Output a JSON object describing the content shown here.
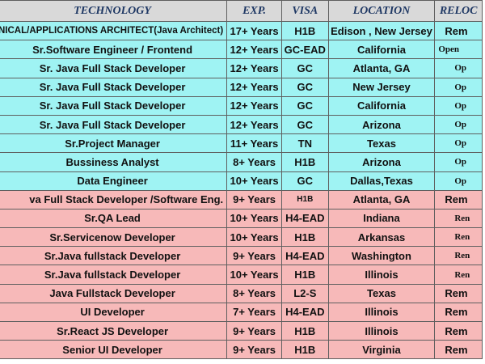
{
  "header": {
    "technology": "TECHNOLOGY",
    "experience": "EXP.",
    "visa": "VISA",
    "location": "LOCATION",
    "relocation": "RELOC"
  },
  "colors": {
    "header_bg": "#d9d9d9",
    "group_a_bg": "#9ff3f3",
    "group_b_bg": "#f7b9b9",
    "header_text": "#1f3864"
  },
  "rows": [
    {
      "technology": "NICAL/APPLICATIONS ARCHITECT(Java Architect)",
      "experience": "17+ Years",
      "visa": "H1B",
      "location": "Edison , New Jersey",
      "relocation": "Rem",
      "group": "a"
    },
    {
      "technology": "Sr.Software Engineer / Frontend",
      "experience": "12+ Years",
      "visa": "GC-EAD",
      "location": "California",
      "relocation": "Open",
      "group": "a"
    },
    {
      "technology": "Sr. Java Full Stack Developer",
      "experience": "12+ Years",
      "visa": "GC",
      "location": "Atlanta, GA",
      "relocation": "Op",
      "group": "a"
    },
    {
      "technology": "Sr. Java Full Stack Developer",
      "experience": "12+ Years",
      "visa": "GC",
      "location": "New Jersey",
      "relocation": "Op",
      "group": "a"
    },
    {
      "technology": "Sr. Java Full Stack Developer",
      "experience": "12+ Years",
      "visa": "GC",
      "location": "California",
      "relocation": "Op",
      "group": "a"
    },
    {
      "technology": "Sr. Java Full Stack Developer",
      "experience": "12+ Years",
      "visa": "GC",
      "location": "Arizona",
      "relocation": "Op",
      "group": "a"
    },
    {
      "technology": "Sr.Project Manager",
      "experience": "11+ Years",
      "visa": "TN",
      "location": "Texas",
      "relocation": "Op",
      "group": "a"
    },
    {
      "technology": "Bussiness Analyst",
      "experience": "8+ Years",
      "visa": "H1B",
      "location": "Arizona",
      "relocation": "Op",
      "group": "a"
    },
    {
      "technology": "Data Engineer",
      "experience": "10+ Years",
      "visa": "GC",
      "location": "Dallas,Texas",
      "relocation": "Op",
      "group": "a"
    },
    {
      "technology": "va Full Stack Developer /Software Eng.",
      "experience": "9+ Years",
      "visa": "H1B",
      "location": "Atlanta, GA",
      "relocation": "Rem",
      "group": "b"
    },
    {
      "technology": "Sr.QA Lead",
      "experience": "10+ Years",
      "visa": "H4-EAD",
      "location": "Indiana",
      "relocation": "Ren",
      "group": "b"
    },
    {
      "technology": "Sr.Servicenow Developer",
      "experience": "10+ Years",
      "visa": "H1B",
      "location": "Arkansas",
      "relocation": "Ren",
      "group": "b"
    },
    {
      "technology": "Sr.Java fullstack Developer",
      "experience": "9+ Years",
      "visa": "H4-EAD",
      "location": "Washington",
      "relocation": "Ren",
      "group": "b"
    },
    {
      "technology": "Sr.Java fullstack Developer",
      "experience": "10+ Years",
      "visa": "H1B",
      "location": "Illinois",
      "relocation": "Ren",
      "group": "b"
    },
    {
      "technology": "Java Fullstack Developer",
      "experience": "8+ Years",
      "visa": "L2-S",
      "location": "Texas",
      "relocation": "Rem",
      "group": "b"
    },
    {
      "technology": "UI Developer",
      "experience": "7+ Years",
      "visa": "H4-EAD",
      "location": "Illinois",
      "relocation": "Rem",
      "group": "b"
    },
    {
      "technology": "Sr.React JS Developer",
      "experience": "9+ Years",
      "visa": "H1B",
      "location": "Illinois",
      "relocation": "Rem",
      "group": "b"
    },
    {
      "technology": "Senior UI Developer",
      "experience": "9+ Years",
      "visa": "H1B",
      "location": "Virginia",
      "relocation": "Rem",
      "group": "b"
    }
  ]
}
